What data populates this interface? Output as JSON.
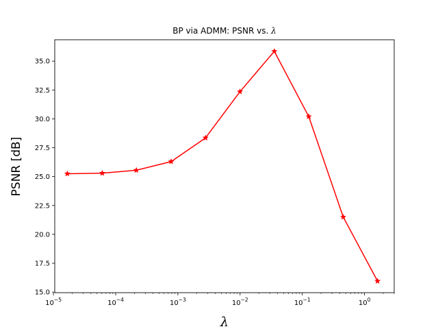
{
  "chart_data": {
    "type": "line",
    "title": "BP via ADMM: PSNR vs. λ",
    "xlabel": "λ",
    "ylabel": "PSNR [dB]",
    "x_scale": "log",
    "xlim": [
      1.05e-05,
      3.0
    ],
    "ylim": [
      14.95,
      36.85
    ],
    "x_ticks": [
      {
        "value": 1e-05,
        "label": "10",
        "exp": "−5"
      },
      {
        "value": 0.0001,
        "label": "10",
        "exp": "−4"
      },
      {
        "value": 0.001,
        "label": "10",
        "exp": "−3"
      },
      {
        "value": 0.01,
        "label": "10",
        "exp": "−2"
      },
      {
        "value": 0.1,
        "label": "10",
        "exp": "−1"
      },
      {
        "value": 1,
        "label": "10",
        "exp": "0"
      }
    ],
    "y_ticks": [
      {
        "value": 15.0,
        "label": "15.0"
      },
      {
        "value": 17.5,
        "label": "17.5"
      },
      {
        "value": 20.0,
        "label": "20.0"
      },
      {
        "value": 22.5,
        "label": "22.5"
      },
      {
        "value": 25.0,
        "label": "25.0"
      },
      {
        "value": 27.5,
        "label": "27.5"
      },
      {
        "value": 30.0,
        "label": "30.0"
      },
      {
        "value": 32.5,
        "label": "32.5"
      },
      {
        "value": 35.0,
        "label": "35.0"
      }
    ],
    "grid": false,
    "series": [
      {
        "color": "#ff0000",
        "marker": "star",
        "x": [
          1.67e-05,
          6.1e-05,
          0.000215,
          0.00078,
          0.00278,
          0.00995,
          0.0355,
          0.127,
          0.455,
          1.62
        ],
        "y": [
          25.25,
          25.3,
          25.55,
          26.3,
          28.35,
          32.35,
          35.85,
          30.2,
          21.5,
          15.95
        ]
      }
    ]
  }
}
